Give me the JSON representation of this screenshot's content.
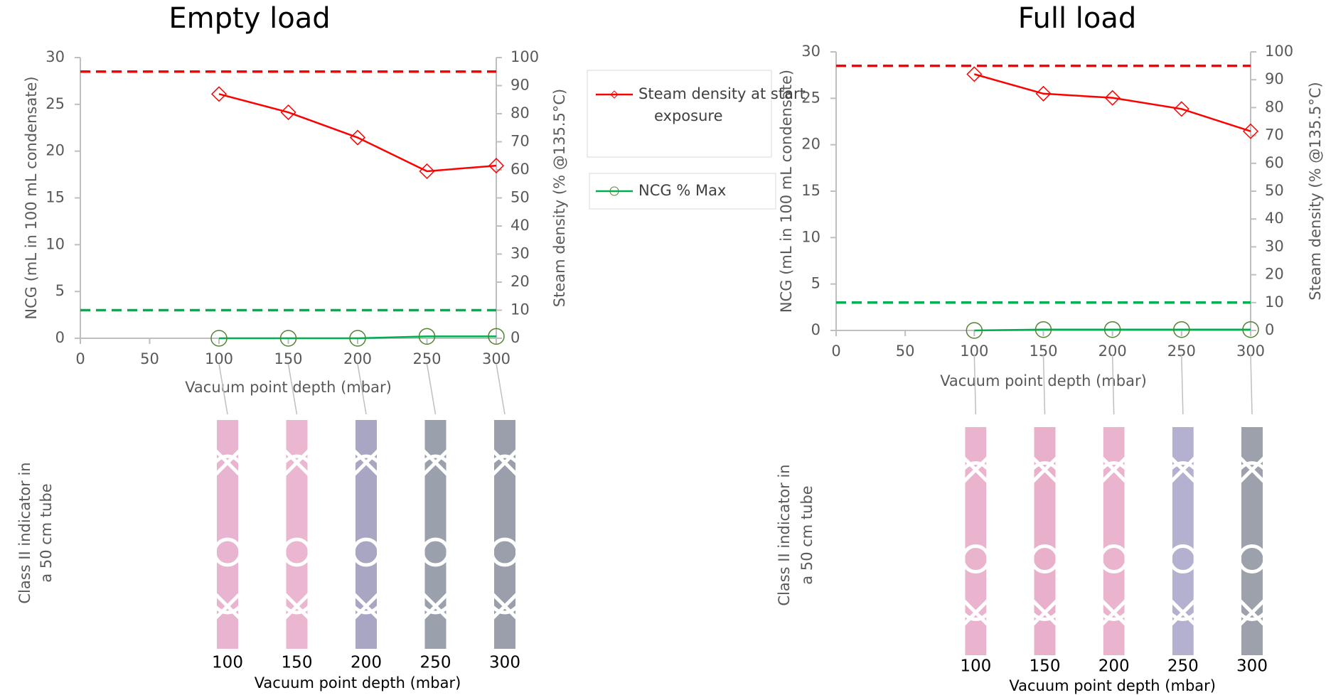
{
  "chart_data": [
    {
      "type": "line",
      "title": "Empty load",
      "x_label": "Vacuum point depth (mbar)",
      "y_label": "NCG (mL  in 100 mL condensate)",
      "y2_label": "Steam density (% @135.5°C)",
      "x": [
        100,
        150,
        200,
        250,
        300
      ],
      "xlim": [
        0,
        300
      ],
      "xticks": [
        0,
        50,
        100,
        150,
        200,
        250,
        300
      ],
      "ylim": [
        0,
        30
      ],
      "yticks": [
        0,
        5,
        10,
        15,
        20,
        25,
        30
      ],
      "y2lim": [
        0,
        100
      ],
      "y2ticks": [
        0,
        10,
        20,
        30,
        40,
        50,
        60,
        70,
        80,
        90,
        100
      ],
      "series": [
        {
          "name": "Steam density at start exposure",
          "color": "#ff0000",
          "axis": "y2",
          "marker": "diamond",
          "values": [
            87,
            80.5,
            71.5,
            59.5,
            61.5
          ]
        },
        {
          "name": "NCG % Max",
          "color": "#00b050",
          "marker": "circle",
          "marker_color": "#548235",
          "values": [
            0,
            0,
            0,
            0.2,
            0.2
          ]
        }
      ],
      "reference_lines": [
        {
          "axis": "y2",
          "value": 95,
          "color": "#ff0000"
        },
        {
          "axis": "y",
          "value": 3,
          "color": "#00b050"
        }
      ],
      "indicator": {
        "label_lines": [
          "Class II indicator in",
          "a 50 cm tube"
        ],
        "x_label": "Vacuum point depth (mbar)",
        "positions": [
          100,
          150,
          200,
          250,
          300
        ],
        "strip_colors": [
          "#e8b4cf",
          "#eab6d0",
          "#a9a6c4",
          "#9aa0ac",
          "#9a9fab"
        ]
      }
    },
    {
      "type": "line",
      "title": "Full load",
      "x_label": "Vacuum point depth (mbar)",
      "y_label": "NCG (mL  in 100 mL condensate)",
      "y2_label": "Steam density (% @135.5°C)",
      "x": [
        100,
        150,
        200,
        250,
        300
      ],
      "xlim": [
        0,
        300
      ],
      "xticks": [
        0,
        50,
        100,
        150,
        200,
        250,
        300
      ],
      "ylim": [
        0,
        30
      ],
      "yticks": [
        0,
        5,
        10,
        15,
        20,
        25,
        30
      ],
      "y2lim": [
        0,
        100
      ],
      "y2ticks": [
        0,
        10,
        20,
        30,
        40,
        50,
        60,
        70,
        80,
        90,
        100
      ],
      "series": [
        {
          "color": "#ff0000",
          "axis": "y2",
          "marker": "diamond",
          "values": [
            92,
            85,
            83.5,
            79.5,
            71.5
          ]
        },
        {
          "color": "#00b050",
          "marker": "circle",
          "marker_color": "#548235",
          "values": [
            0,
            0.1,
            0.1,
            0.1,
            0.1
          ]
        }
      ],
      "reference_lines": [
        {
          "axis": "y2",
          "value": 95,
          "color": "#ff0000"
        },
        {
          "axis": "y",
          "value": 3,
          "color": "#00b050"
        }
      ],
      "indicator": {
        "label_lines": [
          "Class II indicator in",
          "a 50 cm tube"
        ],
        "x_label": "Vacuum point depth (mbar)",
        "positions": [
          100,
          150,
          200,
          250,
          300
        ],
        "strip_colors": [
          "#eab4cf",
          "#e9b0cc",
          "#eab4cf",
          "#b4b0cf",
          "#9ca1ab"
        ]
      }
    }
  ]
}
